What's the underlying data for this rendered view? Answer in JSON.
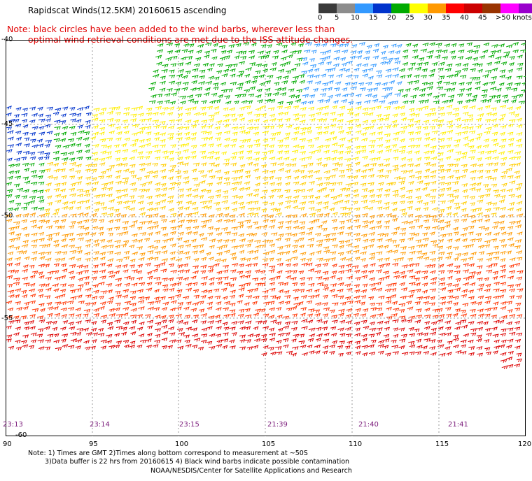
{
  "title": "Rapidscat Winds(12.5KM) 20160615 ascending",
  "note": {
    "line1": "Note: black circles have been added to the wind barbs, wherever less than",
    "line2": "optimal wind retrieval conditions are met due to the ISS attitude changes."
  },
  "legend": {
    "labels": [
      "0",
      "5",
      "10",
      "15",
      "20",
      "25",
      "30",
      "35",
      "40",
      "45",
      ">50 knots"
    ],
    "colors": [
      "#3a3a3a",
      "#8c8c8c",
      "#3399ff",
      "#0033cc",
      "#00aa00",
      "#ffff00",
      "#ff9900",
      "#ff0000",
      "#cc0000",
      "#993300",
      "#ff00ff",
      "#9900cc",
      "#330066"
    ]
  },
  "map": {
    "lon_range": [
      90,
      120
    ],
    "lat_range": [
      -60,
      -40
    ],
    "lon_ticks": [
      "90",
      "95",
      "100",
      "105",
      "110",
      "115",
      "120"
    ],
    "lat_ticks": [
      "-40",
      "-45",
      "-50",
      "-55",
      "-60"
    ],
    "pass_times": [
      "23:13",
      "23:14",
      "23:15",
      "21:39",
      "21:40",
      "21:41"
    ]
  },
  "footer": {
    "line1": "Note: 1) Times are GMT 2)Times along bottom correspond to measurement at ~50S",
    "line2": "3)Data buffer is 22 hrs from 20160615 4) Black wind barbs indicate possible contamination",
    "credit": "NOAA/NESDIS/Center for Satellite Applications and Research"
  }
}
